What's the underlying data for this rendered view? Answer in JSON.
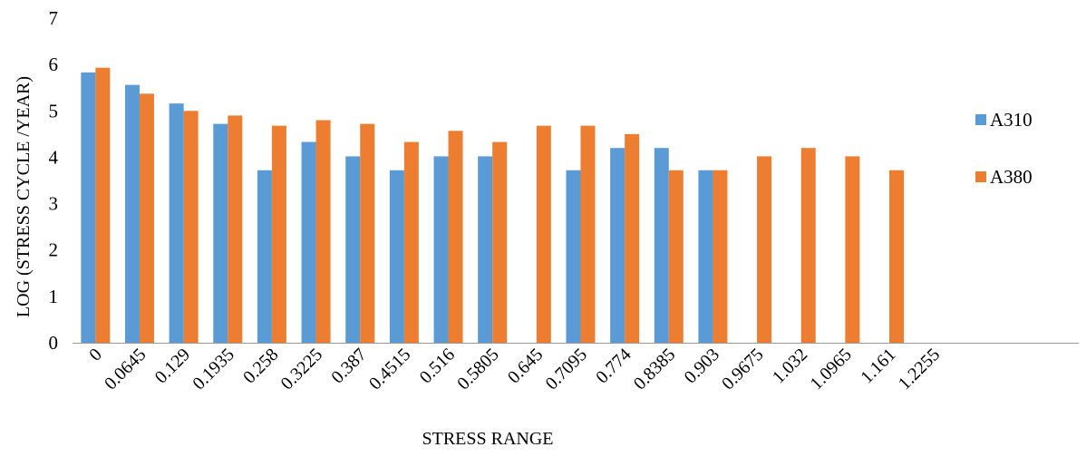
{
  "chart_data": {
    "type": "bar",
    "title": "",
    "xlabel": "STRESS RANGE",
    "ylabel": "LOG (STRESS CYCLE /YEAR)",
    "ylim": [
      0,
      7
    ],
    "yticks": [
      "0",
      "1",
      "2",
      "3",
      "4",
      "5",
      "6",
      "7"
    ],
    "categories": [
      "0",
      "0.0645",
      "0.129",
      "0.1935",
      "0.258",
      "0.3225",
      "0.387",
      "0.4515",
      "0.516",
      "0.5805",
      "0.645",
      "0.7095",
      "0.774",
      "0.8385",
      "0.903",
      "0.9675",
      "1.032",
      "1.0965",
      "1.161",
      "1.2255"
    ],
    "series": [
      {
        "name": "A310",
        "color": "#5B9BD5",
        "values": [
          5.83,
          5.56,
          5.16,
          4.72,
          3.72,
          4.33,
          4.02,
          3.72,
          4.02,
          4.02,
          null,
          3.72,
          4.2,
          4.2,
          3.72,
          null,
          null,
          null,
          null,
          null
        ]
      },
      {
        "name": "A380",
        "color": "#ED7D31",
        "values": [
          5.93,
          5.37,
          5.0,
          4.9,
          4.68,
          4.8,
          4.72,
          4.33,
          4.57,
          4.33,
          4.68,
          4.68,
          4.5,
          3.72,
          3.72,
          4.02,
          4.2,
          4.02,
          3.72,
          null
        ]
      }
    ],
    "grid": false,
    "legend_position": "right",
    "axis_color": "#999999"
  }
}
